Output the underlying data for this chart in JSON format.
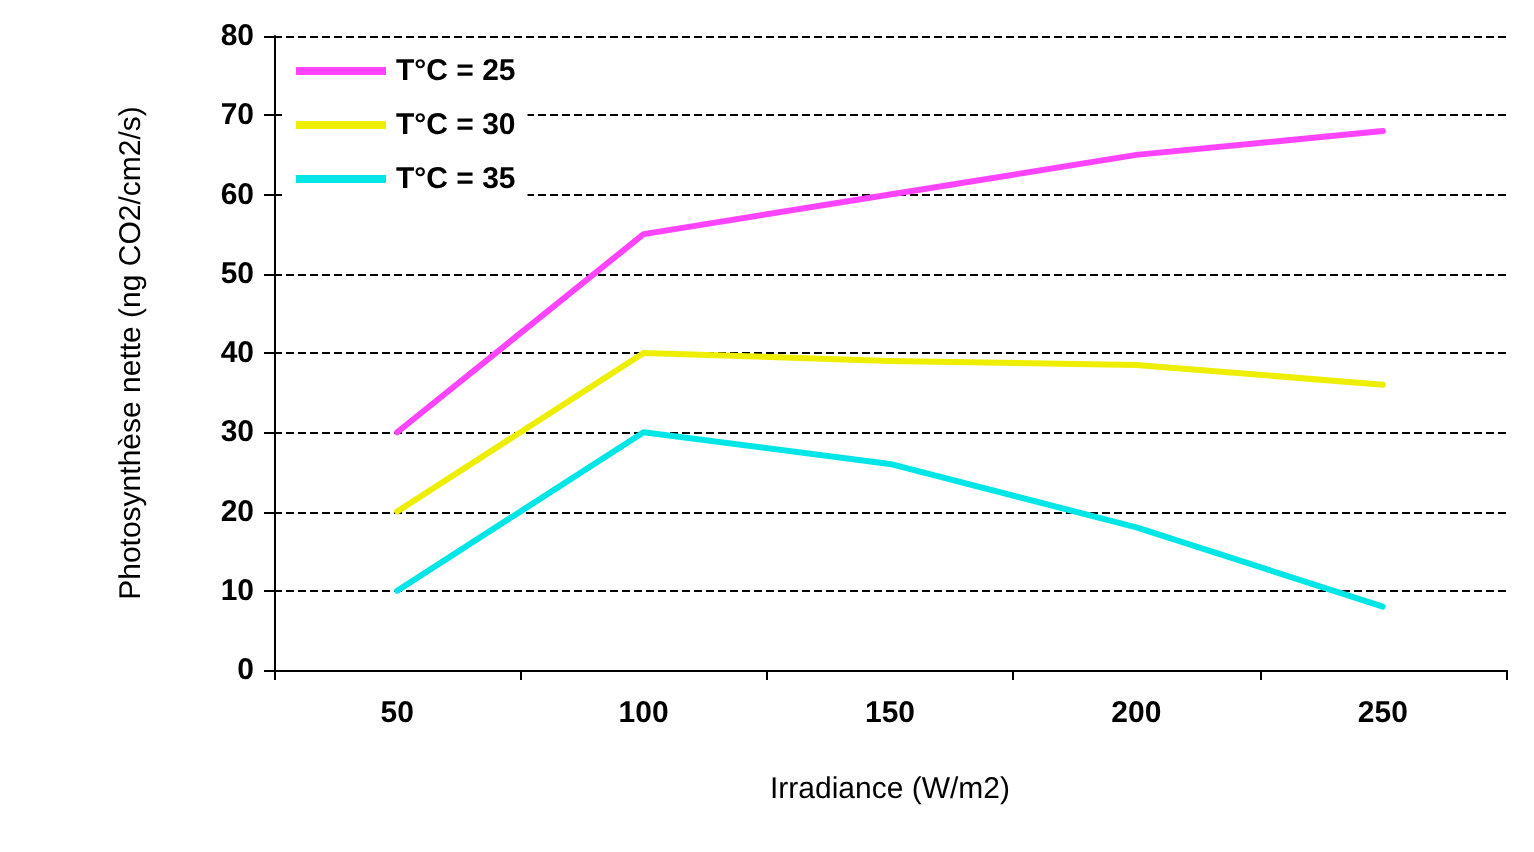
{
  "chart_data": {
    "type": "line",
    "xlabel": "Irradiance (W/m2)",
    "ylabel": "Photosynthèse nette (ng CO2/cm2/s)",
    "categories": [
      "50",
      "100",
      "150",
      "200",
      "250"
    ],
    "series": [
      {
        "name": "T°C = 25",
        "color": "#ff44ff",
        "values": [
          30,
          55,
          60,
          65,
          68
        ]
      },
      {
        "name": "T°C = 30",
        "color": "#eeee00",
        "values": [
          20,
          40,
          39,
          38.5,
          36
        ]
      },
      {
        "name": "T°C = 35",
        "color": "#00e6e6",
        "values": [
          10,
          30,
          26,
          18,
          8
        ]
      }
    ],
    "ylim": [
      0,
      80
    ],
    "yticks": [
      0,
      10,
      20,
      30,
      40,
      50,
      60,
      70,
      80
    ],
    "grid": "y",
    "legend": "top left",
    "marker": "none",
    "line_style": "solid"
  }
}
